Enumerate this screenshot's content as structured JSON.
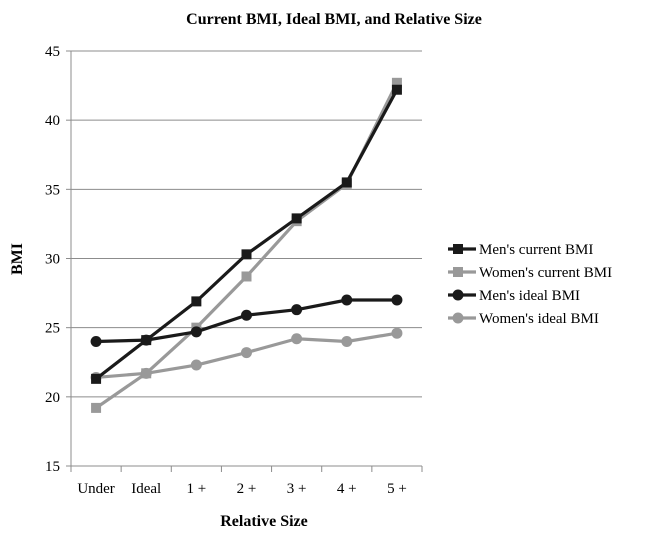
{
  "chart_data": {
    "type": "line",
    "title": "Current BMI, Ideal BMI, and Relative Size",
    "xlabel": "Relative Size",
    "ylabel": "BMI",
    "categories": [
      "Under",
      "Ideal",
      "1 +",
      "2 +",
      "3 +",
      "4 +",
      "5 +"
    ],
    "ylim": [
      15,
      45
    ],
    "yticks": [
      15,
      20,
      25,
      30,
      35,
      40,
      45
    ],
    "grid": true,
    "legend_position": "right",
    "series": [
      {
        "name": "Men's current BMI",
        "marker": "square",
        "color": "#1a1a1a",
        "values": [
          21.3,
          24.1,
          26.9,
          30.3,
          32.9,
          35.5,
          42.2
        ]
      },
      {
        "name": "Women's current BMI",
        "marker": "square",
        "color": "#999999",
        "values": [
          19.2,
          21.7,
          25.0,
          28.7,
          32.7,
          35.4,
          42.7
        ]
      },
      {
        "name": "Men's ideal BMI",
        "marker": "circle",
        "color": "#1a1a1a",
        "values": [
          24.0,
          24.1,
          24.7,
          25.9,
          26.3,
          27.0,
          27.0
        ]
      },
      {
        "name": "Women's ideal BMI",
        "marker": "circle",
        "color": "#999999",
        "values": [
          21.4,
          21.7,
          22.3,
          23.2,
          24.2,
          24.0,
          24.6
        ]
      }
    ]
  }
}
